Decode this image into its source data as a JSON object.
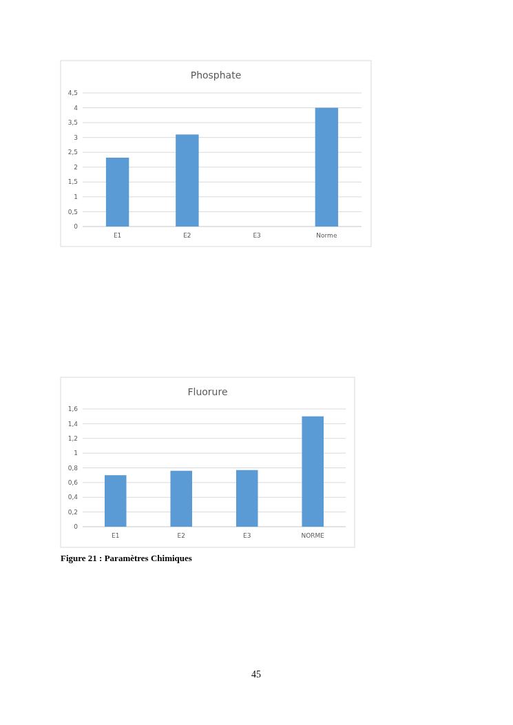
{
  "chart_data": [
    {
      "type": "bar",
      "title": "Phosphate",
      "categories": [
        "E1",
        "E2",
        "E3",
        "Norme"
      ],
      "values": [
        2.32,
        3.1,
        null,
        4
      ],
      "color": "#5b9bd5",
      "ylim": [
        0,
        4.5
      ],
      "yticks": [
        0,
        {
          "value": 0.5,
          "label": "0,5"
        },
        1,
        {
          "value": 1.5,
          "label": "1,5"
        },
        2,
        {
          "value": 2.5,
          "label": "2,5"
        },
        3,
        {
          "value": 3.5,
          "label": "3,5"
        },
        4,
        {
          "value": 4.5,
          "label": "4,5"
        }
      ],
      "grid": "y"
    },
    {
      "type": "bar",
      "title": "Fluorure",
      "categories": [
        "E1",
        "E2",
        "E3",
        "NORME"
      ],
      "values": [
        0.7,
        0.76,
        0.77,
        1.5
      ],
      "color": "#5b9bd5",
      "ylim": [
        0,
        1.6
      ],
      "yticks": [
        0,
        {
          "value": 0.2,
          "label": "0,2"
        },
        {
          "value": 0.4,
          "label": "0,4"
        },
        {
          "value": 0.6,
          "label": "0,6"
        },
        {
          "value": 0.8,
          "label": "0,8"
        },
        1,
        {
          "value": 1.2,
          "label": "1,2"
        },
        {
          "value": 1.4,
          "label": "1,4"
        },
        {
          "value": 1.6,
          "label": "1,6"
        }
      ],
      "grid": "y",
      "annotations": [
        "Figure 21 : Paramètres Chimiques",
        "45"
      ]
    }
  ]
}
